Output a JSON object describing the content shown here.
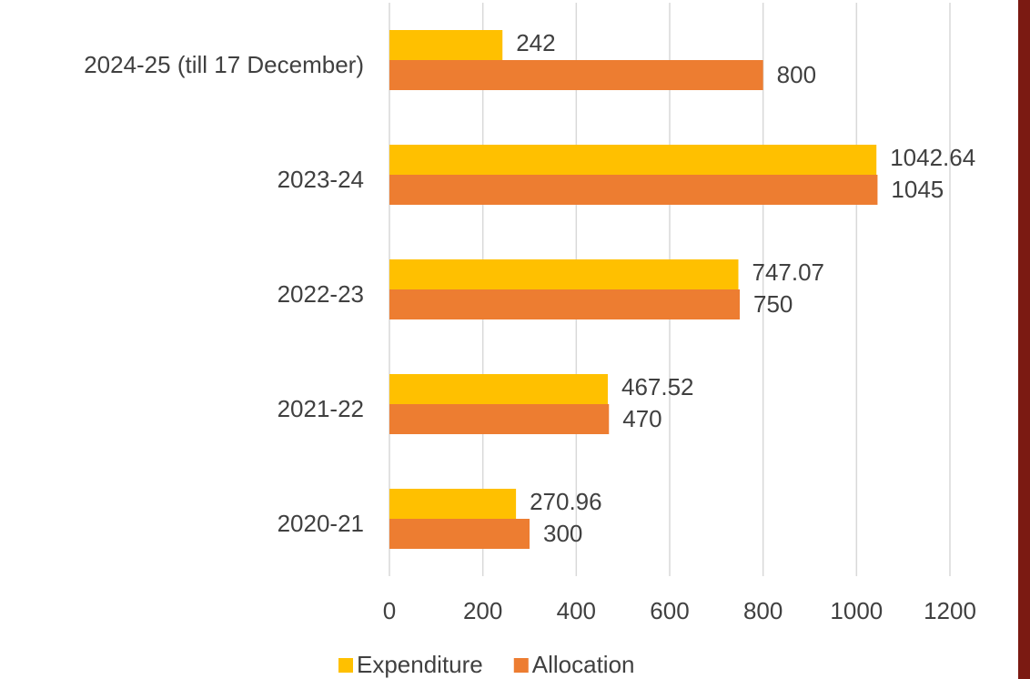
{
  "chart_data": {
    "type": "bar",
    "orientation": "horizontal",
    "categories": [
      "2024-25 (till 17 December)",
      "2023-24",
      "2022-23",
      "2021-22",
      "2020-21"
    ],
    "series": [
      {
        "name": "Expenditure",
        "color": "#ffc000",
        "values": [
          242,
          1042.64,
          747.07,
          467.52,
          270.96
        ]
      },
      {
        "name": "Allocation",
        "color": "#ed7d31",
        "values": [
          800,
          1045,
          750,
          470,
          300
        ]
      }
    ],
    "xlim": [
      0,
      1200
    ],
    "xticks": [
      0,
      200,
      400,
      600,
      800,
      1000,
      1200
    ],
    "grid": true,
    "legend": "bottom"
  }
}
